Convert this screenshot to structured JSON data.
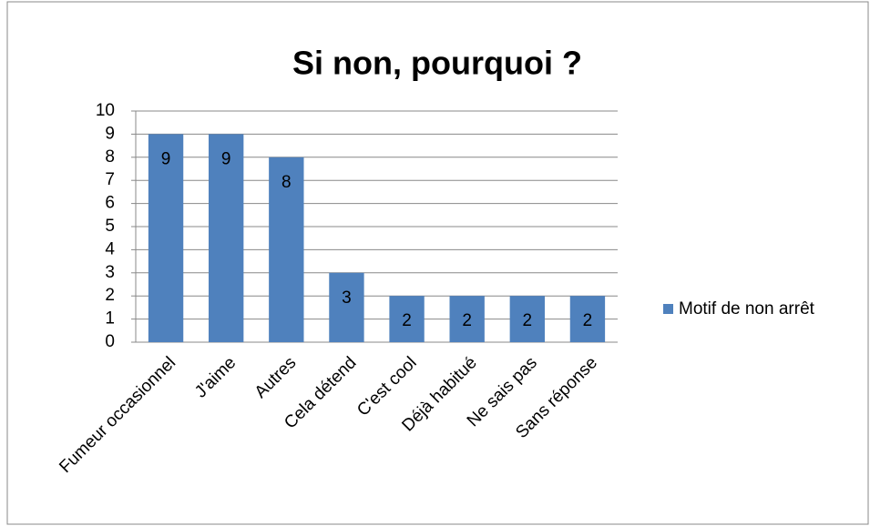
{
  "chart_data": {
    "type": "bar",
    "title": "Si non, pourquoi ?",
    "categories": [
      "Fumeur occasionnel",
      "J'aime",
      "Autres",
      "Cela détend",
      "C'est cool",
      "Déjà habitué",
      "Ne sais pas",
      "Sans réponse"
    ],
    "series": [
      {
        "name": "Motif de non arrêt",
        "color": "#4f81bd",
        "values": [
          9,
          9,
          8,
          3,
          2,
          2,
          2,
          2
        ]
      }
    ],
    "ylim": [
      0,
      10
    ],
    "yticks": [
      0,
      1,
      2,
      3,
      4,
      5,
      6,
      7,
      8,
      9,
      10
    ],
    "grid": true,
    "legend": "right"
  }
}
